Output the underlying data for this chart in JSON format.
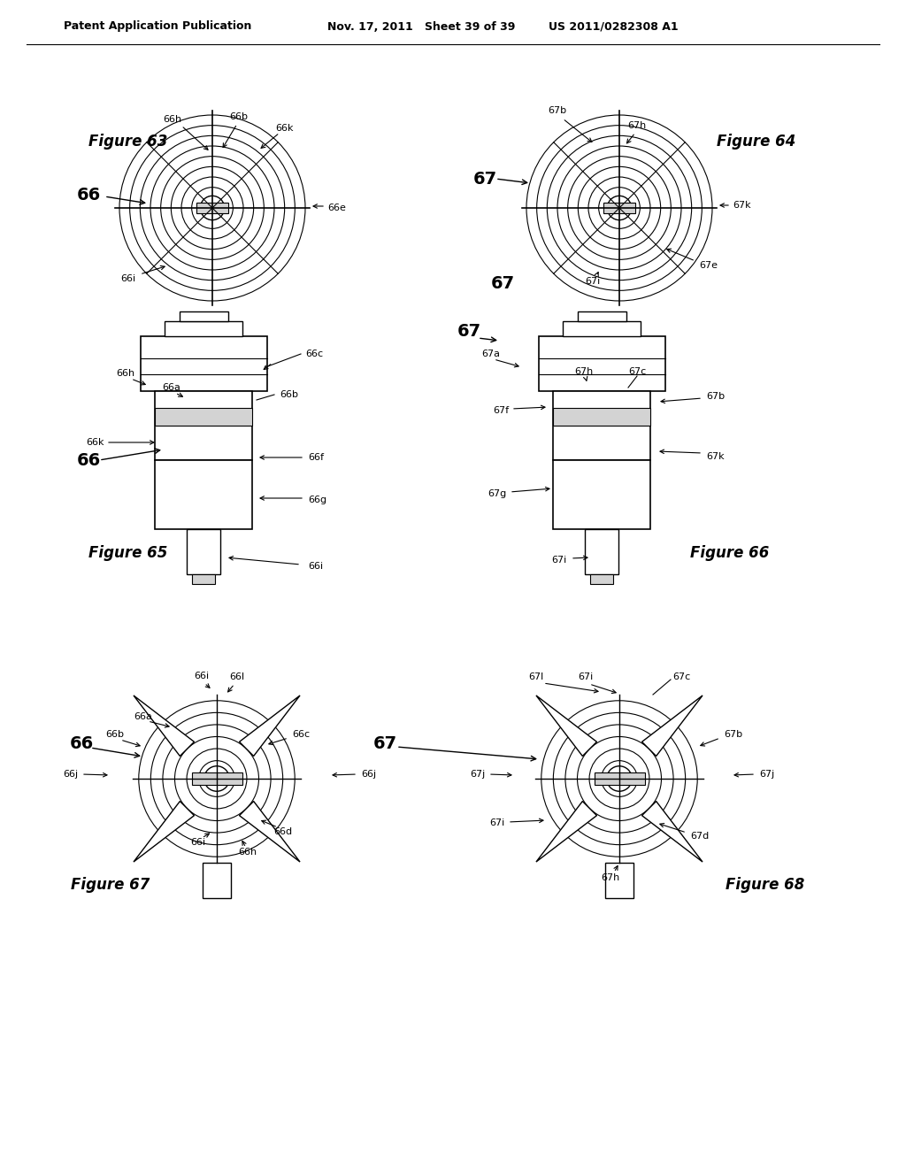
{
  "background_color": "#ffffff",
  "header_text": "Patent Application Publication",
  "header_date": "Nov. 17, 2011",
  "header_sheet": "Sheet 39 of 39",
  "header_patent": "US 2011/0282308 A1"
}
